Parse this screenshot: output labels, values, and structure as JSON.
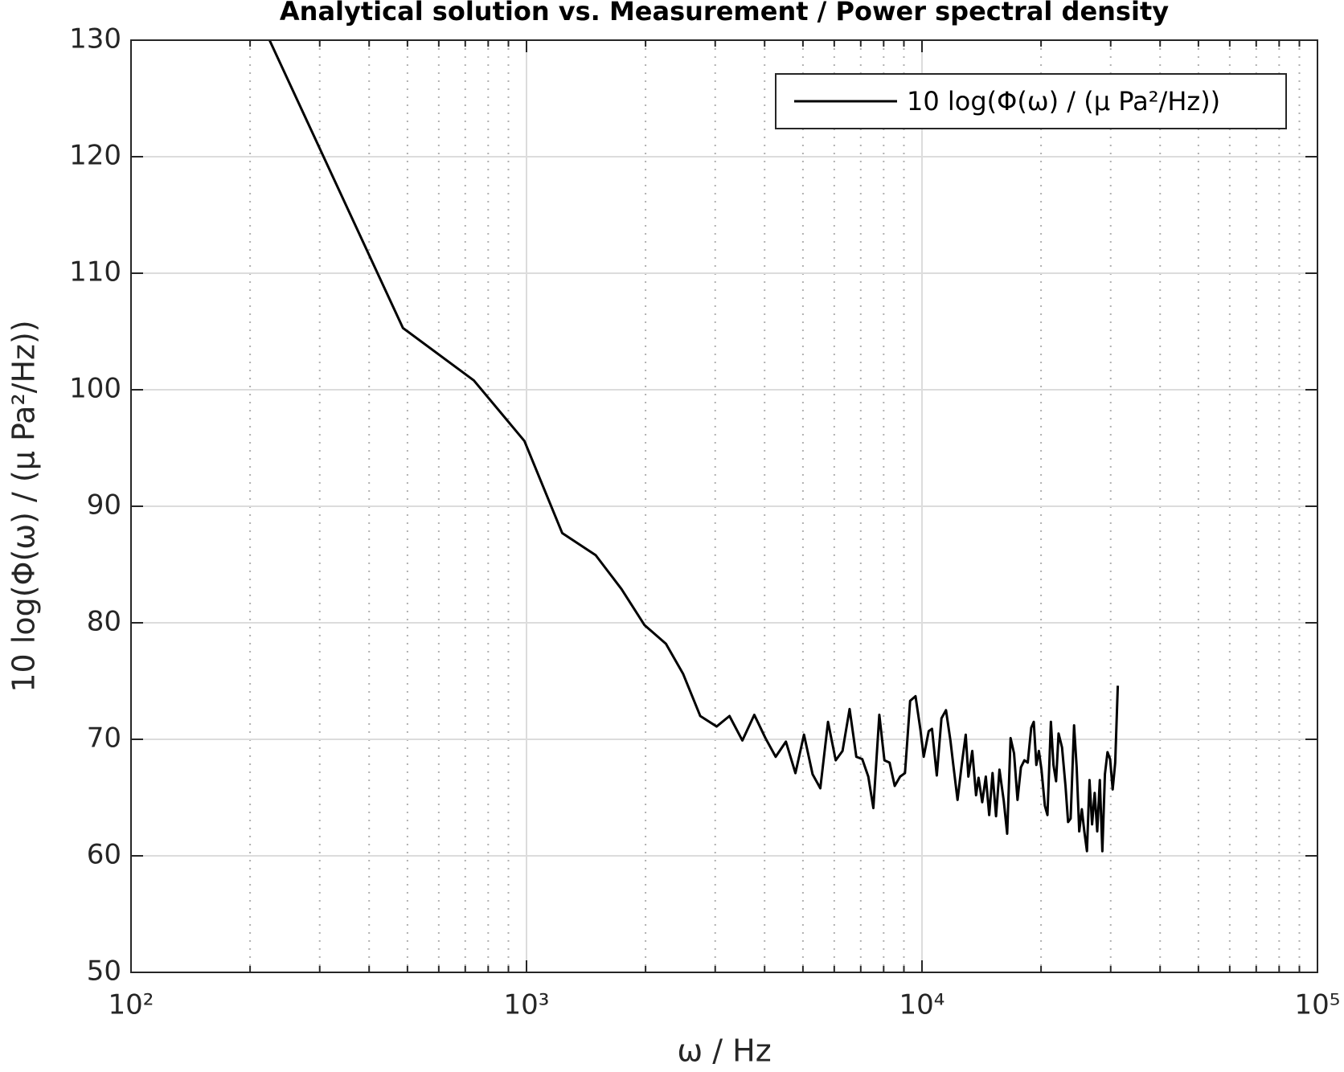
{
  "chart_data": {
    "type": "line",
    "title": "Analytical solution vs. Measurement / Power spectral density",
    "x_label": "ω / Hz",
    "y_label": "10 log(Φ(ω) / (μ Pa²/Hz))",
    "x_scale": "log",
    "xlim": [
      100,
      100000
    ],
    "xticks": [
      {
        "value": 100,
        "label": "10²"
      },
      {
        "value": 1000,
        "label": "10³"
      },
      {
        "value": 10000,
        "label": "10⁴"
      },
      {
        "value": 100000,
        "label": "10⁵"
      }
    ],
    "ylim": [
      50,
      130
    ],
    "yticks": [
      50,
      60,
      70,
      80,
      90,
      100,
      110,
      120,
      130
    ],
    "grid": true,
    "minor_grid": true,
    "legend": "upper right",
    "x": [
      224,
      487,
      736,
      988,
      1231,
      1496,
      1738,
      1988,
      2252,
      2490,
      2750,
      3025,
      3260,
      3514,
      3767,
      4020,
      4266,
      4528,
      4786,
      5031,
      5289,
      5532,
      5786,
      6051,
      6296,
      6561,
      6823,
      7063,
      7315,
      7534,
      7800,
      8035,
      8279,
      8532,
      8805,
      9057,
      9333,
      9630,
      9911,
      10100,
      10400,
      10600,
      10900,
      11200,
      11500,
      11800,
      12000,
      12300,
      12600,
      12900,
      13100,
      13400,
      13700,
      13900,
      14200,
      14500,
      14790,
      15080,
      15390,
      15700,
      16100,
      16420,
      16750,
      17090,
      17440,
      17790,
      18150,
      18510,
      18890,
      19170,
      19460,
      19750,
      20050,
      20450,
      20760,
      21180,
      21500,
      21830,
      22150,
      22600,
      23060,
      23410,
      23760,
      24240,
      24610,
      24980,
      25360,
      25730,
      26130,
      26520,
      26920,
      27330,
      27740,
      28160,
      28580,
      29010,
      29450,
      29900,
      30350,
      30800,
      31270
    ],
    "series": [
      {
        "name": "10 log(Φ(ω) / (μ Pa²/Hz))",
        "color": "#000000",
        "values": [
          130,
          105.3,
          100.8,
          95.6,
          87.7,
          85.8,
          82.9,
          79.8,
          78.2,
          75.6,
          72.0,
          71.1,
          72.0,
          69.9,
          72.1,
          70.1,
          68.5,
          69.8,
          67.1,
          70.4,
          67.0,
          65.8,
          71.5,
          68.2,
          69.0,
          72.6,
          68.5,
          68.3,
          66.8,
          64.1,
          72.1,
          68.2,
          68.0,
          66.0,
          66.8,
          67.1,
          73.3,
          73.7,
          70.8,
          68.5,
          70.7,
          70.9,
          66.9,
          71.8,
          72.5,
          69.9,
          67.8,
          64.8,
          67.8,
          70.4,
          66.8,
          69.0,
          65.2,
          66.7,
          64.6,
          66.8,
          63.5,
          67.1,
          63.4,
          67.4,
          64.7,
          61.9,
          70.1,
          68.8,
          64.8,
          67.6,
          68.2,
          68.0,
          71.0,
          71.5,
          67.8,
          69.0,
          67.4,
          64.3,
          63.5,
          71.5,
          67.8,
          66.4,
          70.5,
          69.3,
          66.0,
          62.9,
          63.2,
          71.2,
          67.6,
          62.1,
          64.0,
          62.1,
          60.4,
          66.5,
          62.7,
          65.4,
          62.1,
          66.5,
          60.4,
          67.0,
          68.9,
          68.3,
          65.7,
          68.0,
          74.6
        ]
      }
    ]
  }
}
